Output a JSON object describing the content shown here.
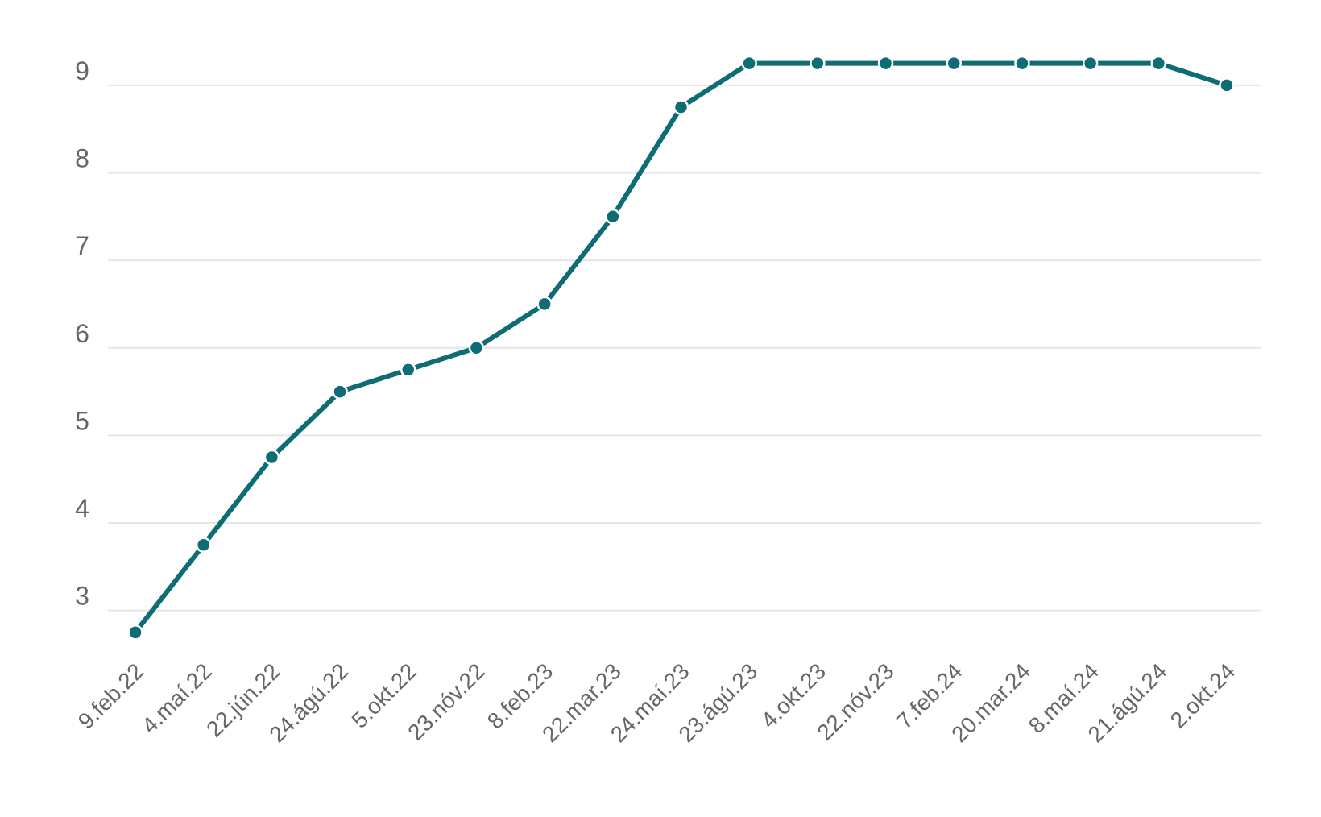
{
  "chart_data": {
    "type": "line",
    "categories": [
      "9.feb.22",
      "4.maí.22",
      "22.jún.22",
      "24.ágú.22",
      "5.okt.22",
      "23.nóv.22",
      "8.feb.23",
      "22.mar.23",
      "24.maí.23",
      "23.ágú.23",
      "4.okt.23",
      "22.nóv.23",
      "7.feb.24",
      "20.mar.24",
      "8.maí.24",
      "21.ágú.24",
      "2.okt.24"
    ],
    "series": [
      {
        "color": "#0e6c74",
        "values": [
          2.75,
          3.75,
          4.75,
          5.5,
          5.75,
          6,
          6.5,
          7.5,
          8.75,
          9.25,
          9.25,
          9.25,
          9.25,
          9.25,
          9.25,
          9.25,
          9.0
        ]
      }
    ],
    "ylim": [
      2.5,
      9.5
    ],
    "yticks": [
      3,
      4,
      5,
      6,
      7,
      8,
      9
    ],
    "grid": true
  }
}
